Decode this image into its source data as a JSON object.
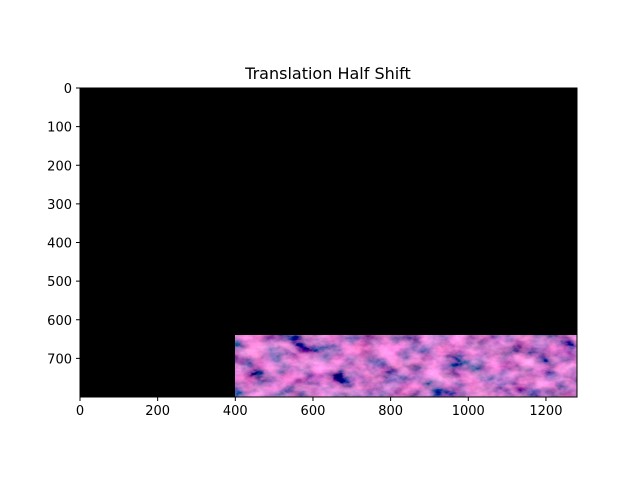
{
  "figure": {
    "title": "Translation Half Shift",
    "background": "#ffffff",
    "axis_color": "#000000"
  },
  "image": {
    "fill_color": "#000000",
    "content_region": {
      "description": "dark nebula/cloud photo with magenta-red highlights",
      "x_start": 400,
      "x_end": 1280,
      "y_start": 640,
      "y_end": 800,
      "palette": [
        "#1b1530",
        "#3a1c45",
        "#6e2450",
        "#b23a5e",
        "#e0607a"
      ]
    }
  },
  "chart_data": {
    "type": "image",
    "xlim": [
      0,
      1280
    ],
    "ylim": [
      800,
      0
    ],
    "xticks": [
      "0",
      "200",
      "400",
      "600",
      "800",
      "1000",
      "1200"
    ],
    "yticks": [
      "0",
      "100",
      "200",
      "300",
      "400",
      "500",
      "600",
      "700"
    ],
    "xlabel": "",
    "ylabel": "",
    "title": "Translation Half Shift"
  }
}
